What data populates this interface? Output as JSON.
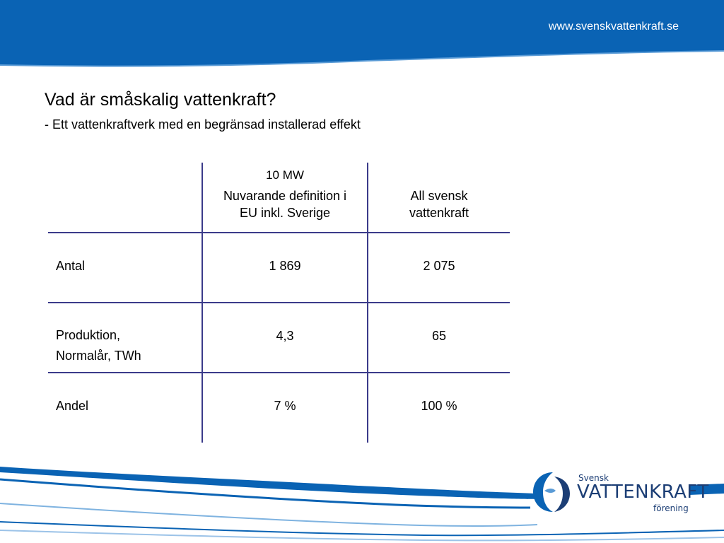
{
  "header": {
    "url": "www.svenskvattenkraft.se",
    "color": "#0a63b4"
  },
  "slide": {
    "title": "Vad är småskalig vattenkraft?",
    "subtitle": "- Ett vattenkraftverk med en begränsad installerad effekt"
  },
  "table": {
    "columns": [
      {
        "line1": "10 MW",
        "line2": "Nuvarande definition i",
        "line3": "EU inkl. Sverige"
      },
      {
        "line1": "All svensk",
        "line2": "vattenkraft"
      }
    ],
    "rows": [
      {
        "label": "Antal",
        "col1": "1 869",
        "col2": "2 075"
      },
      {
        "label_line1": "Produktion,",
        "label_line2": "Normalår, TWh",
        "col1": "4,3",
        "col2": "65"
      },
      {
        "label": "Andel",
        "col1": "7 %",
        "col2": "100 %"
      }
    ],
    "line_color": "#3b3b8a"
  },
  "logo": {
    "small": "Svensk",
    "main": "VATTENKRAFT",
    "sub": "förening",
    "color": "#1c3e75"
  }
}
